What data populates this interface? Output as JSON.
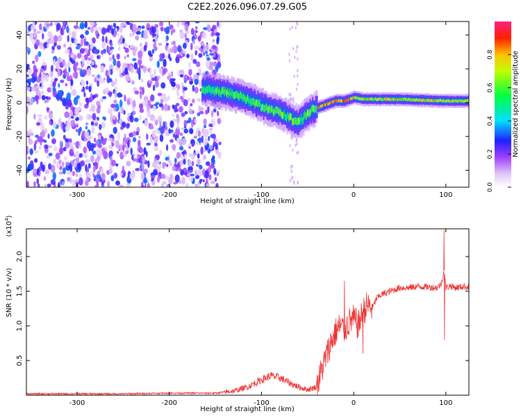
{
  "title": "C2E2.2026.096.07.29.G05",
  "chart_data": [
    {
      "type": "heatmap",
      "xlabel": "Height of straight line (km)",
      "ylabel": "Frequency (Hz)",
      "xlim": [
        -355,
        125
      ],
      "ylim": [
        -50,
        48
      ],
      "xticks": [
        -300,
        -200,
        -100,
        0,
        100
      ],
      "yticks": [
        -40,
        -20,
        0,
        20,
        40
      ],
      "colorbar": {
        "label": "Normalized spectral amplitude",
        "range": [
          0,
          1
        ],
        "ticks": [
          "0.0",
          "0.2",
          "0.4",
          "0.6",
          "0.8"
        ]
      },
      "ridge": {
        "description_points": [
          {
            "x": -160,
            "y": 8
          },
          {
            "x": -140,
            "y": 6
          },
          {
            "x": -120,
            "y": 3
          },
          {
            "x": -100,
            "y": -2
          },
          {
            "x": -80,
            "y": -6
          },
          {
            "x": -60,
            "y": -12
          },
          {
            "x": -50,
            "y": -6
          },
          {
            "x": -40,
            "y": -3
          },
          {
            "x": -30,
            "y": -1
          },
          {
            "x": -20,
            "y": 1
          },
          {
            "x": -10,
            "y": 1
          },
          {
            "x": 0,
            "y": 3
          },
          {
            "x": 10,
            "y": 2
          },
          {
            "x": 50,
            "y": 2
          },
          {
            "x": 100,
            "y": 1
          },
          {
            "x": 125,
            "y": 1
          }
        ],
        "peak_amplitude": 0.95
      },
      "noise_region_x": [
        -355,
        -145
      ]
    },
    {
      "type": "line",
      "xlabel": "Height of straight line (km)",
      "ylabel": "SNR (10 * v/v)",
      "y_multiplier_label": "(x10",
      "y_multiplier_exp": "4",
      "y_multiplier_close": ")",
      "xlim": [
        -355,
        125
      ],
      "ylim": [
        0,
        2.4
      ],
      "xticks": [
        -300,
        -200,
        -100,
        0,
        100
      ],
      "yticks": [
        "0.5",
        "1.0",
        "1.5",
        "2.0"
      ],
      "color": "#ee3333",
      "series": [
        {
          "name": "SNR (x10^4)",
          "x": [
            -355,
            -300,
            -250,
            -200,
            -150,
            -130,
            -115,
            -100,
            -90,
            -80,
            -70,
            -60,
            -50,
            -40,
            -35,
            -30,
            -25,
            -20,
            -15,
            -10,
            -5,
            0,
            5,
            10,
            15,
            20,
            25,
            30,
            40,
            50,
            60,
            70,
            80,
            90,
            95,
            98,
            100,
            105,
            110,
            115,
            120,
            125
          ],
          "values": [
            0.02,
            0.02,
            0.02,
            0.03,
            0.03,
            0.06,
            0.12,
            0.22,
            0.28,
            0.25,
            0.18,
            0.12,
            0.08,
            0.12,
            0.35,
            0.55,
            0.75,
            0.9,
            1.0,
            0.95,
            1.05,
            1.1,
            1.0,
            1.2,
            1.3,
            1.25,
            1.4,
            1.45,
            1.5,
            1.55,
            1.55,
            1.57,
            1.56,
            1.55,
            1.6,
            1.8,
            1.55,
            1.58,
            1.55,
            1.56,
            1.57,
            1.56
          ]
        }
      ],
      "noise_amplitude": 0.18,
      "spikes": [
        {
          "x": -10,
          "y": 1.65
        },
        {
          "x": 10,
          "y": 0.6
        },
        {
          "x": 98,
          "y": 2.38
        },
        {
          "x": 98.5,
          "y": 0.8
        }
      ]
    }
  ]
}
